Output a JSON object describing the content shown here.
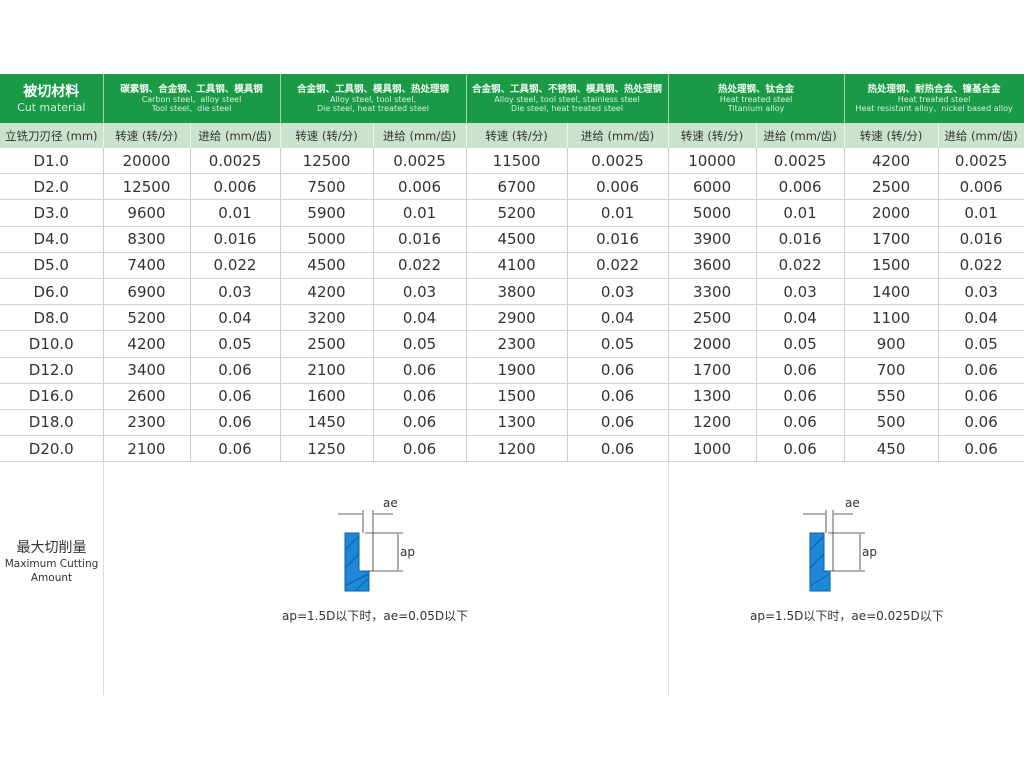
{
  "header": {
    "cut_material_zh": "被切材料",
    "cut_material_en": "Cut material",
    "groups": [
      {
        "zh": "碳素钢、合金钢、工具钢、模具钢",
        "en1": "Carbon steel、alloy steel",
        "en2": "Tool steel、die steel"
      },
      {
        "zh": "合金钢、工具钢、模具钢、热处理钢",
        "en1": "Alloy steel, tool steel,",
        "en2": "Die steel, heat treated steel"
      },
      {
        "zh": "合金钢、工具钢、不锈钢、模具钢、热处理钢",
        "en1": "Alloy steel, tool steel, stainless steel",
        "en2": "Die steel, heat treated steel"
      },
      {
        "zh": "热处理钢、钛合金",
        "en1": "Heat treated steel",
        "en2": "Titanium alloy"
      },
      {
        "zh": "热处理钢、耐热合金、镍基合金",
        "en1": "Heat treated steel",
        "en2": "Heat resistant alloy、nickel based alloy"
      }
    ]
  },
  "subheader": {
    "diameter": "立铣刀刃径 (mm)",
    "speed": "转速 (转/分)",
    "feed": "进给 (mm/齿)"
  },
  "rows": [
    [
      "D1.0",
      "20000",
      "0.0025",
      "12500",
      "0.0025",
      "11500",
      "0.0025",
      "10000",
      "0.0025",
      "4200",
      "0.0025"
    ],
    [
      "D2.0",
      "12500",
      "0.006",
      "7500",
      "0.006",
      "6700",
      "0.006",
      "6000",
      "0.006",
      "2500",
      "0.006"
    ],
    [
      "D3.0",
      "9600",
      "0.01",
      "5900",
      "0.01",
      "5200",
      "0.01",
      "5000",
      "0.01",
      "2000",
      "0.01"
    ],
    [
      "D4.0",
      "8300",
      "0.016",
      "5000",
      "0.016",
      "4500",
      "0.016",
      "3900",
      "0.016",
      "1700",
      "0.016"
    ],
    [
      "D5.0",
      "7400",
      "0.022",
      "4500",
      "0.022",
      "4100",
      "0.022",
      "3600",
      "0.022",
      "1500",
      "0.022"
    ],
    [
      "D6.0",
      "6900",
      "0.03",
      "4200",
      "0.03",
      "3800",
      "0.03",
      "3300",
      "0.03",
      "1400",
      "0.03"
    ],
    [
      "D8.0",
      "5200",
      "0.04",
      "3200",
      "0.04",
      "2900",
      "0.04",
      "2500",
      "0.04",
      "1100",
      "0.04"
    ],
    [
      "D10.0",
      "4200",
      "0.05",
      "2500",
      "0.05",
      "2300",
      "0.05",
      "2000",
      "0.05",
      "900",
      "0.05"
    ],
    [
      "D12.0",
      "3400",
      "0.06",
      "2100",
      "0.06",
      "1900",
      "0.06",
      "1700",
      "0.06",
      "700",
      "0.06"
    ],
    [
      "D16.0",
      "2600",
      "0.06",
      "1600",
      "0.06",
      "1500",
      "0.06",
      "1300",
      "0.06",
      "550",
      "0.06"
    ],
    [
      "D18.0",
      "2300",
      "0.06",
      "1450",
      "0.06",
      "1300",
      "0.06",
      "1200",
      "0.06",
      "500",
      "0.06"
    ],
    [
      "D20.0",
      "2100",
      "0.06",
      "1250",
      "0.06",
      "1200",
      "0.06",
      "1000",
      "0.06",
      "450",
      "0.06"
    ]
  ],
  "max_cut": {
    "zh": "最大切削量",
    "en": "Maximum Cutting Amount",
    "ae_label": "ae",
    "ap_label": "ap",
    "formula_left": "ap=1.5D以下时，ae=0.05D以下",
    "formula_right": "ap=1.5D以下时，ae=0.025D以下"
  },
  "colors": {
    "header_green": "#1a9a47",
    "subheader_green": "#c9e3cc",
    "diagram_blue": "#1e88d8"
  }
}
